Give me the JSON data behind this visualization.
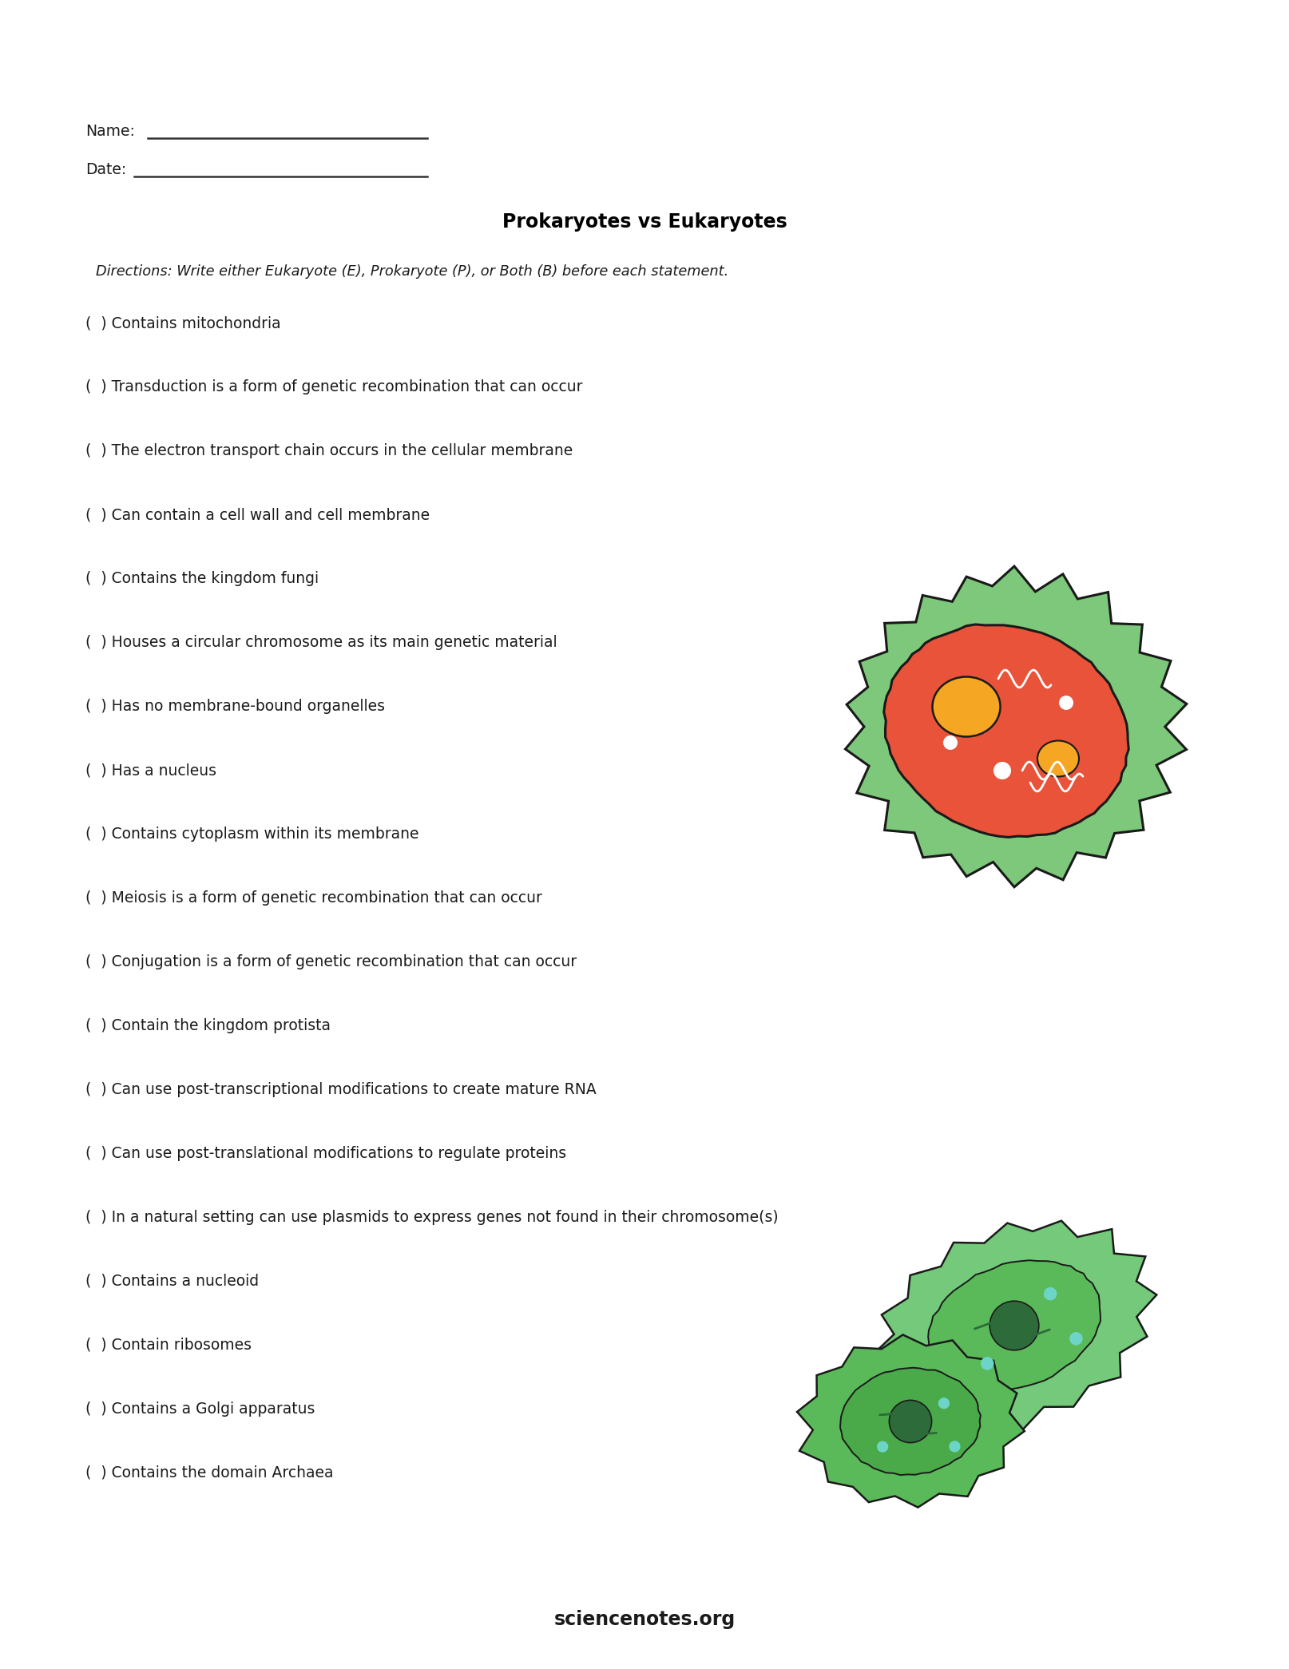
{
  "title": "Prokaryotes vs Eukaryotes",
  "directions": "Directions: Write either Eukaryote (E), Prokaryote (P), or Both (B) before each statement.",
  "name_label": "Name:",
  "date_label": "Date:",
  "questions": [
    "(  ) Contains mitochondria",
    "(  ) Transduction is a form of genetic recombination that can occur",
    "(  ) The electron transport chain occurs in the cellular membrane",
    "(  ) Can contain a cell wall and cell membrane",
    "(  ) Contains the kingdom fungi",
    "(  ) Houses a circular chromosome as its main genetic material",
    "(  ) Has no membrane-bound organelles",
    "(  ) Has a nucleus",
    "(  ) Contains cytoplasm within its membrane",
    "(  ) Meiosis is a form of genetic recombination that can occur",
    "(  ) Conjugation is a form of genetic recombination that can occur",
    "(  ) Contain the kingdom protista",
    "(  ) Can use post-transcriptional modifications to create mature RNA",
    "(  ) Can use post-translational modifications to regulate proteins",
    "(  ) In a natural setting can use plasmids to express genes not found in their chromosome(s)",
    "(  ) Contains a nucleoid",
    "(  ) Contain ribosomes",
    "(  ) Contains a Golgi apparatus",
    "(  ) Contains the domain Archaea"
  ],
  "footer": "sciencenotes.org",
  "bg_color": "#ffffff",
  "text_color": "#1a1a1a",
  "title_color": "#000000",
  "line_color": "#333333",
  "cell1_green": "#7DC87A",
  "cell1_red": "#E8533A",
  "cell1_orange": "#F5A623",
  "cell2_outer": "#74C97A",
  "cell2_inner": "#4fa84f",
  "cell2_dark": "#2d6b3a"
}
